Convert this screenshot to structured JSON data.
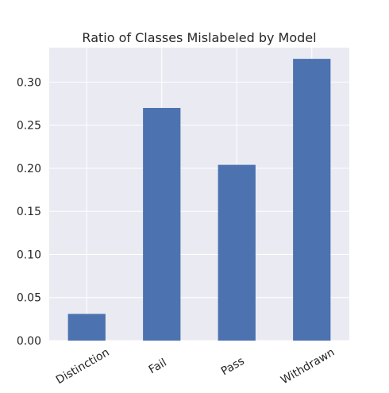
{
  "chart_data": {
    "type": "bar",
    "title": "Ratio of Classes Mislabeled by Model",
    "xlabel": "",
    "ylabel": "",
    "categories": [
      "Distinction",
      "Fail",
      "Pass",
      "Withdrawn"
    ],
    "values": [
      0.031,
      0.27,
      0.204,
      0.327
    ],
    "ylim": [
      0,
      0.34
    ],
    "yticks": [
      0.0,
      0.05,
      0.1,
      0.15,
      0.2,
      0.25,
      0.3
    ],
    "ytick_labels": [
      "0.00",
      "0.05",
      "0.10",
      "0.15",
      "0.20",
      "0.25",
      "0.30"
    ],
    "grid": true,
    "legend": "none",
    "colors": {
      "bar": "#4c72b0",
      "plot_background": "#eaeaf2",
      "grid": "#ffffff",
      "text": "#262626"
    }
  }
}
